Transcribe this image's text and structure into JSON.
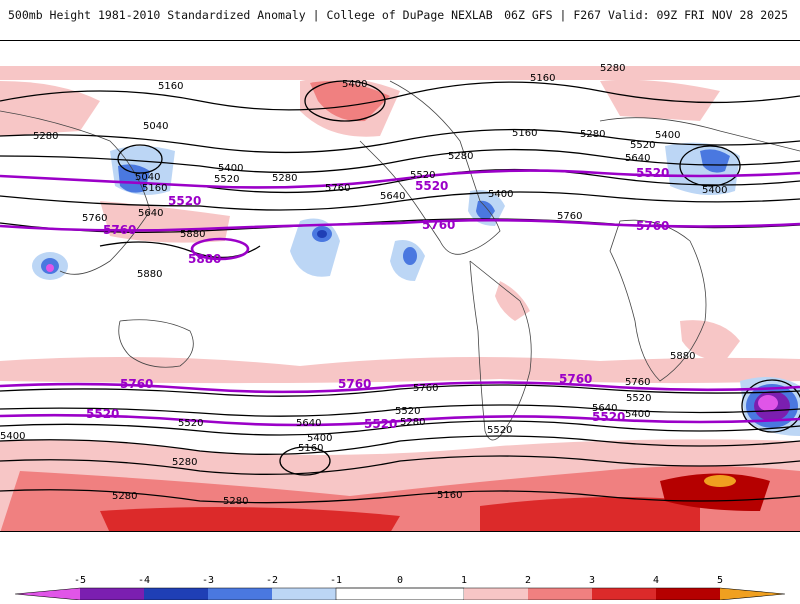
{
  "header": {
    "title": "500mb Height 1981-2010 Standardized Anomaly | College of DuPage NEXLAB",
    "run_info": "06Z GFS | F267 Valid: 09Z FRI NOV 28 2025"
  },
  "colors": {
    "neg5": "#e055e8",
    "neg4": "#7b1fb0",
    "neg3": "#1f3fb5",
    "neg2": "#4a78e0",
    "neg1": "#bcd6f5",
    "zero": "#ffffff",
    "pos1": "#f7c6c6",
    "pos2": "#f08080",
    "pos3": "#dc2a2a",
    "pos4": "#b50000",
    "pos5": "#f0a020",
    "highlight_contour": "#9b00c8",
    "contour": "#000000",
    "land_outline": "#444444"
  },
  "contour_labels": [
    {
      "text": "5160"
    },
    {
      "text": "5280"
    },
    {
      "text": "5400"
    },
    {
      "text": "5160"
    },
    {
      "text": "5040"
    },
    {
      "text": "5280"
    },
    {
      "text": "5400"
    },
    {
      "text": "5520"
    },
    {
      "text": "5040"
    },
    {
      "text": "5160"
    },
    {
      "text": "5280"
    },
    {
      "text": "5640"
    },
    {
      "text": "5760"
    },
    {
      "text": "5880"
    },
    {
      "text": "5880"
    },
    {
      "text": "5520"
    },
    {
      "text": "5640"
    },
    {
      "text": "5400"
    },
    {
      "text": "5160"
    },
    {
      "text": "5280"
    },
    {
      "text": "5400"
    },
    {
      "text": "5520"
    },
    {
      "text": "5640"
    },
    {
      "text": "5880"
    },
    {
      "text": "5760"
    },
    {
      "text": "5760"
    },
    {
      "text": "5400"
    },
    {
      "text": "5280"
    },
    {
      "text": "5400"
    },
    {
      "text": "5520"
    },
    {
      "text": "5640"
    },
    {
      "text": "5520"
    },
    {
      "text": "5280"
    },
    {
      "text": "5160"
    },
    {
      "text": "5400"
    },
    {
      "text": "5280"
    },
    {
      "text": "5160"
    },
    {
      "text": "5280"
    },
    {
      "text": "5280"
    },
    {
      "text": "5760"
    },
    {
      "text": "5400"
    },
    {
      "text": "5520"
    },
    {
      "text": "5640"
    },
    {
      "text": "5520"
    },
    {
      "text": "5760"
    }
  ],
  "purple_labels": [
    {
      "text": "5520"
    },
    {
      "text": "5760"
    },
    {
      "text": "5880"
    },
    {
      "text": "5520"
    },
    {
      "text": "5760"
    },
    {
      "text": "5520"
    },
    {
      "text": "5760"
    },
    {
      "text": "5760"
    },
    {
      "text": "5760"
    },
    {
      "text": "5760"
    },
    {
      "text": "5520"
    },
    {
      "text": "5520"
    },
    {
      "text": "5520"
    }
  ],
  "colorbar": {
    "ticks": [
      "-5",
      "-4",
      "-3",
      "-2",
      "-1",
      "0",
      "1",
      "2",
      "3",
      "4",
      "5"
    ]
  }
}
